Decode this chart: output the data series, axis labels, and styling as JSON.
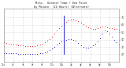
{
  "title_line1": "Milw.  Outdoor Temp / Dew Point",
  "title_line2": "by Minute  (24 Hours) (Alternate)",
  "bg_color": "#ffffff",
  "plot_bg": "#ffffff",
  "grid_color": "#bbbbbb",
  "temp_color": "#dd0000",
  "dew_color": "#0000cc",
  "spike_color": "#0000cc",
  "title_color": "#222222",
  "tick_color": "#444444",
  "ylim": [
    10,
    82
  ],
  "xlim": [
    0,
    1439
  ],
  "temp_x": [
    0,
    30,
    60,
    90,
    120,
    150,
    180,
    210,
    240,
    270,
    300,
    330,
    360,
    390,
    420,
    450,
    480,
    510,
    540,
    570,
    600,
    630,
    660,
    690,
    720,
    750,
    780,
    810,
    840,
    870,
    900,
    930,
    960,
    990,
    1020,
    1050,
    1080,
    1110,
    1140,
    1170,
    1200,
    1230,
    1260,
    1290,
    1320,
    1350,
    1380,
    1410,
    1439
  ],
  "temp_y": [
    36,
    35,
    34,
    34,
    33,
    33,
    32,
    32,
    32,
    31,
    31,
    31,
    31,
    31,
    32,
    33,
    34,
    36,
    38,
    41,
    44,
    48,
    52,
    56,
    59,
    62,
    64,
    66,
    67,
    67,
    66,
    65,
    63,
    61,
    59,
    57,
    55,
    54,
    54,
    55,
    57,
    58,
    58,
    57,
    56,
    55,
    54,
    54,
    53
  ],
  "dew_x": [
    0,
    30,
    60,
    90,
    120,
    150,
    180,
    210,
    240,
    270,
    300,
    330,
    360,
    390,
    420,
    450,
    480,
    510,
    540,
    570,
    600,
    630,
    660,
    690,
    720,
    750,
    780,
    810,
    840,
    870,
    900,
    930,
    960,
    990,
    1020,
    1050,
    1080,
    1110,
    1140,
    1170,
    1200,
    1230,
    1260,
    1290,
    1320,
    1350,
    1380,
    1410,
    1439
  ],
  "dew_y": [
    22,
    21,
    21,
    21,
    21,
    21,
    20,
    20,
    20,
    20,
    20,
    20,
    20,
    20,
    20,
    21,
    22,
    23,
    24,
    26,
    28,
    30,
    33,
    35,
    37,
    39,
    40,
    41,
    41,
    40,
    38,
    35,
    32,
    30,
    29,
    29,
    30,
    32,
    34,
    37,
    42,
    48,
    52,
    51,
    48,
    44,
    40,
    36,
    33
  ],
  "spike_x": 750,
  "spike_ymin": 20,
  "spike_ymax": 72,
  "yticks": [
    20,
    30,
    40,
    50,
    60,
    70
  ],
  "xtick_positions": [
    0,
    120,
    240,
    360,
    480,
    600,
    720,
    840,
    960,
    1080,
    1200,
    1320
  ],
  "xtick_labels": [
    "12a",
    "2a",
    "4a",
    "6a",
    "8a",
    "10a",
    "12p",
    "2p",
    "4p",
    "6p",
    "8p",
    "10p"
  ]
}
